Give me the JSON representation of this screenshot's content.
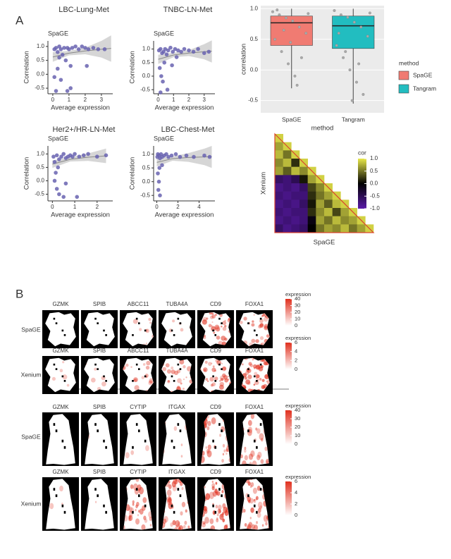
{
  "panel_labels": [
    "A",
    "B"
  ],
  "chart_data": [
    {
      "type": "scatter",
      "title": "LBC-Lung-Met",
      "subtitle": "SpaGE",
      "x_label": "Average expression",
      "y_label": "Correlation",
      "color": "#6863b0",
      "x": [
        0.1,
        0.2,
        0.3,
        0.4,
        0.5,
        0.6,
        0.7,
        0.8,
        0.9,
        1.0,
        1.1,
        1.2,
        1.4,
        1.6,
        1.8,
        2.0,
        2.2,
        2.5,
        2.8,
        3.2,
        0.1,
        0.3,
        0.5,
        0.2,
        0.9,
        1.1,
        2.1,
        0.4
      ],
      "values": [
        0.9,
        0.95,
        0.8,
        1.0,
        0.9,
        0.7,
        0.95,
        0.5,
        0.95,
        0.9,
        0.3,
        0.95,
        1.0,
        0.9,
        1.0,
        0.95,
        0.9,
        0.95,
        0.9,
        0.9,
        -0.1,
        0.2,
        -0.2,
        -0.6,
        -0.6,
        -0.5,
        0.3,
        0.6
      ],
      "fit": {
        "x": [
          0,
          1,
          2,
          3,
          3.6
        ],
        "values": [
          0.62,
          0.76,
          0.84,
          0.9,
          0.93
        ],
        "lower": [
          0.45,
          0.68,
          0.72,
          0.6,
          0.45
        ],
        "upper": [
          0.79,
          0.84,
          0.96,
          1.2,
          1.4
        ]
      },
      "xlim": [
        -0.3,
        3.7
      ],
      "ylim": [
        -0.7,
        1.2
      ],
      "xticks": [
        0,
        1,
        2,
        3
      ],
      "yticks": [
        -0.5,
        {
          "value": 0,
          "label": "0.0"
        },
        0.5,
        {
          "value": 1,
          "label": "1.0"
        }
      ]
    },
    {
      "type": "scatter",
      "title": "TNBC-LN-Met",
      "subtitle": "SpaGE",
      "x_label": "Average expression",
      "y_label": "Correlation",
      "color": "#6863b0",
      "x": [
        0.05,
        0.15,
        0.25,
        0.35,
        0.45,
        0.55,
        0.65,
        0.8,
        0.95,
        1.1,
        1.3,
        1.5,
        1.7,
        2.0,
        2.3,
        2.6,
        3.0,
        3.3,
        0.1,
        0.2,
        0.3,
        0.4,
        0.6,
        0.9,
        0.15,
        1.2
      ],
      "values": [
        0.95,
        1.0,
        0.85,
        0.9,
        1.0,
        0.8,
        0.95,
        1.05,
        0.9,
        1.0,
        0.95,
        0.9,
        1.0,
        0.95,
        0.9,
        1.0,
        0.85,
        0.9,
        0.3,
        0.0,
        -0.2,
        0.5,
        -0.5,
        0.4,
        -0.6,
        0.7
      ],
      "fit": {
        "x": [
          0,
          1,
          2,
          3,
          3.5
        ],
        "values": [
          0.62,
          0.78,
          0.85,
          0.9,
          0.92
        ],
        "lower": [
          0.45,
          0.7,
          0.74,
          0.62,
          0.5
        ],
        "upper": [
          0.79,
          0.86,
          0.96,
          1.18,
          1.32
        ]
      },
      "xlim": [
        -0.3,
        3.7
      ],
      "ylim": [
        -0.65,
        1.3
      ],
      "xticks": [
        0,
        1,
        2,
        3
      ],
      "yticks": [
        -0.5,
        {
          "value": 0,
          "label": "0.0"
        },
        0.5,
        {
          "value": 1,
          "label": "1.0"
        }
      ]
    },
    {
      "type": "scatter",
      "title": "Her2+/HR-LN-Met",
      "subtitle": "SpaGE",
      "x_label": "Average expression",
      "y_label": "Correlation",
      "color": "#6863b0",
      "x": [
        0.05,
        0.1,
        0.2,
        0.3,
        0.4,
        0.5,
        0.6,
        0.7,
        0.8,
        0.9,
        1.0,
        1.2,
        1.4,
        1.6,
        2.0,
        2.4,
        0.1,
        0.2,
        0.3,
        0.15,
        0.5,
        0.6,
        0.25,
        1.1
      ],
      "values": [
        0.9,
        0.7,
        0.95,
        0.8,
        0.9,
        1.0,
        0.85,
        0.9,
        0.95,
        0.9,
        1.0,
        0.9,
        0.95,
        1.0,
        0.9,
        0.95,
        0.0,
        -0.3,
        -0.5,
        0.3,
        -0.6,
        -0.1,
        0.5,
        -0.6
      ],
      "fit": {
        "x": [
          0,
          0.8,
          1.6,
          2.4
        ],
        "values": [
          0.62,
          0.8,
          0.88,
          0.93
        ],
        "lower": [
          0.48,
          0.72,
          0.74,
          0.66
        ],
        "upper": [
          0.76,
          0.88,
          1.02,
          1.2
        ]
      },
      "xlim": [
        -0.2,
        2.7
      ],
      "ylim": [
        -0.75,
        1.3
      ],
      "xticks": [
        0,
        1,
        2
      ],
      "yticks": [
        -0.5,
        {
          "value": 0,
          "label": "0.0"
        },
        0.5,
        {
          "value": 1,
          "label": "1.0"
        }
      ]
    },
    {
      "type": "scatter",
      "title": "LBC-Chest-Met",
      "subtitle": "SpaGE",
      "x_label": "Average expression",
      "y_label": "Correlation",
      "color": "#6863b0",
      "x": [
        0.05,
        0.1,
        0.2,
        0.3,
        0.4,
        0.5,
        0.7,
        0.9,
        1.1,
        1.4,
        1.8,
        2.2,
        2.8,
        3.5,
        4.5,
        5.0,
        0.1,
        0.2,
        0.15,
        0.3,
        0.25,
        0.5
      ],
      "values": [
        0.9,
        1.0,
        0.95,
        0.85,
        1.0,
        0.9,
        0.95,
        1.0,
        0.9,
        0.95,
        1.0,
        0.9,
        0.95,
        0.9,
        0.95,
        0.9,
        0.3,
        0.0,
        -0.3,
        -0.5,
        0.5,
        0.6
      ],
      "fit": {
        "x": [
          0,
          1.5,
          3,
          4.5,
          5.2
        ],
        "values": [
          0.7,
          0.84,
          0.88,
          0.9,
          0.91
        ],
        "lower": [
          0.55,
          0.76,
          0.72,
          0.6,
          0.5
        ],
        "upper": [
          0.85,
          0.92,
          1.04,
          1.2,
          1.3
        ]
      },
      "xlim": [
        -0.3,
        5.5
      ],
      "ylim": [
        -0.7,
        1.3
      ],
      "xticks": [
        0,
        2,
        4
      ],
      "yticks": [
        -0.5,
        {
          "value": 0,
          "label": "0.0"
        },
        0.5,
        {
          "value": 1,
          "label": "1.0"
        }
      ]
    },
    {
      "type": "box",
      "x_label": "method",
      "y_label": "correlation",
      "legend_title": "method",
      "categories": [
        "SpaGE",
        "Tangram"
      ],
      "colors": [
        "#f07b72",
        "#22bdc0"
      ],
      "boxes": [
        {
          "low": -0.3,
          "q1": 0.4,
          "median": 0.77,
          "q3": 0.88,
          "high": 1.0,
          "points": [
            0.95,
            0.9,
            0.85,
            0.8,
            0.7,
            0.6,
            0.5,
            0.3,
            0.1,
            -0.1,
            0.2,
            0.92,
            0.98,
            0.65,
            0.45,
            -0.25
          ]
        },
        {
          "low": -0.55,
          "q1": 0.35,
          "median": 0.72,
          "q3": 0.88,
          "high": 1.0,
          "points": [
            0.97,
            0.9,
            0.86,
            0.78,
            0.7,
            0.55,
            0.4,
            0.2,
            0.0,
            -0.2,
            -0.4,
            0.93,
            0.6,
            0.3,
            -0.5,
            0.1
          ]
        }
      ],
      "ylim": [
        -0.7,
        1.05
      ],
      "yticks": [
        -0.5,
        {
          "value": 0,
          "label": "0.0"
        },
        0.5,
        {
          "value": 1,
          "label": "1.0"
        }
      ]
    },
    {
      "type": "heatmap",
      "x_label": "SpaGE",
      "y_label": "Xenium",
      "legend_title": "cor",
      "matrix": [
        [
          0.9
        ],
        [
          0.7,
          0.9
        ],
        [
          0.8,
          0.5,
          0.9
        ],
        [
          0.6,
          0.8,
          0.2,
          0.9
        ],
        [
          0.7,
          0.4,
          0.8,
          0.6,
          0.9
        ],
        [
          -0.6,
          -0.7,
          -0.5,
          0.1,
          0.7,
          0.9
        ],
        [
          -0.8,
          -0.7,
          -0.8,
          -0.6,
          0.3,
          0.6,
          0.9
        ],
        [
          -0.7,
          -0.8,
          -0.7,
          -0.7,
          0.2,
          0.5,
          0.7,
          0.9
        ],
        [
          -0.8,
          -0.7,
          -0.8,
          -0.6,
          0.1,
          0.7,
          0.4,
          0.8,
          0.9
        ],
        [
          -0.7,
          -0.8,
          -0.7,
          -0.7,
          0.2,
          0.6,
          0.8,
          0.3,
          0.7,
          0.9
        ],
        [
          -0.8,
          -0.7,
          -0.8,
          -0.7,
          -0.1,
          0.7,
          0.5,
          0.8,
          0.6,
          0.7,
          0.9
        ],
        [
          -0.6,
          -0.8,
          -0.7,
          -0.6,
          0.0,
          0.5,
          0.7,
          0.6,
          0.8,
          0.5,
          0.7,
          0.9
        ]
      ],
      "clim": [
        -1,
        1
      ],
      "cticks": [
        {
          "value": 1,
          "label": "1.0"
        },
        0.5,
        {
          "value": 0,
          "label": "0.0"
        },
        -0.5,
        {
          "value": -1,
          "label": "-1.0"
        }
      ]
    }
  ],
  "panel_b": {
    "groups": [
      {
        "genes": [
          "GZMK",
          "SPIB",
          "ABCC11",
          "TUBA4A",
          "CD9",
          "FOXA1"
        ],
        "rows": [
          {
            "name": "SpaGE",
            "legend_title": "expression",
            "legend_ticks": [
              40,
              30,
              20,
              10,
              0
            ]
          },
          {
            "name": "Xenium",
            "legend_title": "expression",
            "legend_ticks": [
              6,
              4,
              2,
              0
            ]
          }
        ]
      },
      {
        "genes": [
          "GZMK",
          "SPIB",
          "CYTIP",
          "ITGAX",
          "CD9",
          "FOXA1"
        ],
        "rows": [
          {
            "name": "SpaGE",
            "legend_title": "expression",
            "legend_ticks": [
              40,
              30,
              20,
              10,
              0
            ]
          },
          {
            "name": "Xenium",
            "legend_title": "expression",
            "legend_ticks": [
              6,
              4,
              2,
              0
            ]
          }
        ]
      }
    ]
  }
}
